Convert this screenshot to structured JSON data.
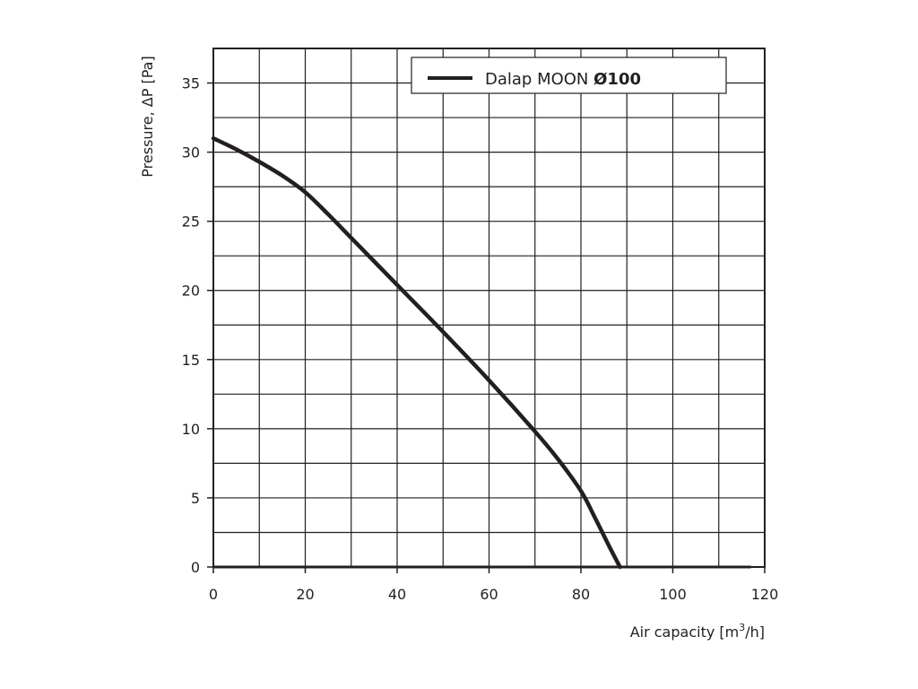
{
  "chart_data": {
    "type": "line",
    "title": "",
    "xlabel": "Air capacity [m",
    "xlabel_sup": "3",
    "xlabel_end": "/h]",
    "ylabel": "Pressure, ΔP [Pa]",
    "xlim": [
      0,
      120
    ],
    "ylim": [
      0,
      37.5
    ],
    "x_ticks": [
      0,
      20,
      40,
      60,
      80,
      100,
      120
    ],
    "y_ticks": [
      0,
      5,
      10,
      15,
      20,
      25,
      30,
      35
    ],
    "x_tick_labels": [
      "0",
      "20",
      "40",
      "60",
      "80",
      "100",
      "120"
    ],
    "y_tick_labels": [
      "0",
      "5",
      "10",
      "15",
      "20",
      "25",
      "30",
      "35"
    ],
    "x_grid_step": 10,
    "y_grid_step": 2.5,
    "grid": true,
    "legend_position": "top-right",
    "series": [
      {
        "name": "Dalap MOON ",
        "name_bold": "Ø100",
        "color": "#231f20",
        "x": [
          0,
          5,
          10,
          15,
          20,
          25,
          30,
          40,
          50,
          60,
          70,
          75,
          80,
          83,
          86,
          88.5
        ],
        "y": [
          31,
          30.2,
          29.3,
          28.3,
          27.1,
          25.5,
          23.8,
          20.4,
          17.0,
          13.5,
          9.8,
          7.8,
          5.5,
          3.6,
          1.6,
          0
        ]
      }
    ],
    "baseline_extension_to_x": 117
  },
  "colors": {
    "ink": "#231f20",
    "grid": "#231f20",
    "background": "#ffffff"
  }
}
